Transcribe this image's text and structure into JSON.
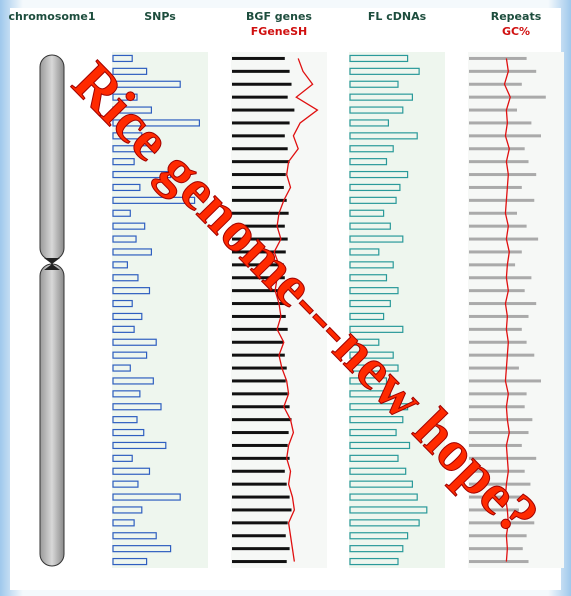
{
  "chromosome": "chromosome1",
  "tracks": [
    {
      "title": "SNPs",
      "color": "#2f5fc0",
      "style": "outline",
      "values": [
        20,
        35,
        70,
        25,
        40,
        90,
        30,
        45,
        22,
        60,
        28,
        85,
        18,
        33,
        24,
        40,
        15,
        26,
        38,
        20,
        30,
        22,
        45,
        35,
        18,
        42,
        28,
        50,
        25,
        32,
        55,
        20,
        38,
        26,
        70,
        30,
        22,
        45,
        60,
        35
      ]
    },
    {
      "title": "BGF genes",
      "subtitle": "FGeneSH",
      "color": "#111111",
      "style": "line",
      "line_color": "#e01010",
      "values": [
        55,
        60,
        62,
        58,
        65,
        60,
        55,
        58,
        60,
        56,
        54,
        57,
        59,
        55,
        58,
        56,
        54,
        55,
        57,
        55,
        56,
        58,
        54,
        55,
        57,
        56,
        58,
        60,
        62,
        59,
        58,
        60,
        55,
        57,
        60,
        62,
        58,
        56,
        60,
        57
      ],
      "line": [
        70,
        75,
        85,
        68,
        90,
        72,
        65,
        70,
        60,
        58,
        62,
        55,
        50,
        48,
        52,
        45,
        50,
        48,
        46,
        50,
        52,
        48,
        55,
        50,
        53,
        58,
        60,
        55,
        62,
        65,
        60,
        58,
        62,
        60,
        64,
        66,
        60,
        62,
        64,
        66
      ]
    },
    {
      "title": "FL cDNAs",
      "color": "#2a9a9a",
      "style": "outline",
      "values": [
        60,
        72,
        50,
        65,
        55,
        40,
        70,
        45,
        38,
        60,
        52,
        48,
        35,
        42,
        55,
        30,
        45,
        38,
        50,
        42,
        35,
        55,
        30,
        45,
        50,
        38,
        42,
        60,
        55,
        48,
        62,
        50,
        58,
        65,
        70,
        80,
        72,
        60,
        55,
        50
      ]
    },
    {
      "title": "Repeats",
      "subtitle": "GC%",
      "color": "#aaaaaa",
      "style": "line",
      "line_color": "#e01010",
      "values": [
        60,
        70,
        55,
        80,
        50,
        65,
        75,
        58,
        62,
        70,
        55,
        68,
        50,
        60,
        72,
        55,
        48,
        65,
        58,
        70,
        62,
        55,
        60,
        68,
        52,
        75,
        60,
        58,
        66,
        62,
        55,
        70,
        58,
        64,
        60,
        52,
        68,
        60,
        56,
        62
      ],
      "line": [
        40,
        42,
        38,
        44,
        40,
        41,
        39,
        43,
        40,
        42,
        41,
        40,
        39,
        42,
        40,
        43,
        41,
        40,
        42,
        39,
        41,
        40,
        42,
        41,
        40,
        39,
        42,
        40,
        41,
        43,
        40,
        41,
        42,
        40,
        39,
        41,
        42,
        40,
        41,
        40
      ]
    }
  ],
  "overlay_title": "Rice genome---new hope?"
}
